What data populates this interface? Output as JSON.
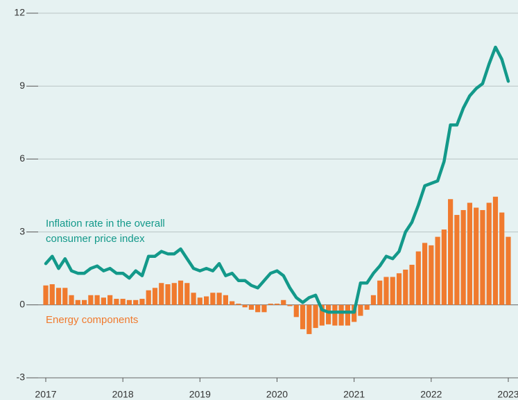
{
  "chart_data": {
    "type": "bar-line",
    "categories": [
      "2017",
      null,
      null,
      null,
      null,
      null,
      null,
      null,
      null,
      null,
      null,
      null,
      "2018",
      null,
      null,
      null,
      null,
      null,
      null,
      null,
      null,
      null,
      null,
      null,
      "2019",
      null,
      null,
      null,
      null,
      null,
      null,
      null,
      null,
      null,
      null,
      null,
      "2020",
      null,
      null,
      null,
      null,
      null,
      null,
      null,
      null,
      null,
      null,
      null,
      "2021",
      null,
      null,
      null,
      null,
      null,
      null,
      null,
      null,
      null,
      null,
      null,
      "2022",
      null,
      null,
      null,
      null,
      null,
      null,
      null,
      null,
      null,
      null,
      null,
      "2023"
    ],
    "series": [
      {
        "name": "Energy components",
        "type": "bar",
        "color": "#f07a2e",
        "values": [
          0.8,
          0.85,
          0.7,
          0.7,
          0.4,
          0.2,
          0.2,
          0.4,
          0.4,
          0.3,
          0.4,
          0.25,
          0.25,
          0.2,
          0.2,
          0.25,
          0.6,
          0.7,
          0.9,
          0.85,
          0.9,
          1.0,
          0.9,
          0.5,
          0.3,
          0.35,
          0.5,
          0.5,
          0.4,
          0.15,
          0.05,
          -0.1,
          -0.2,
          -0.3,
          -0.3,
          0.05,
          0.05,
          0.2,
          -0.05,
          -0.5,
          -1.0,
          -1.2,
          -0.95,
          -0.85,
          -0.8,
          -0.85,
          -0.85,
          -0.85,
          -0.7,
          -0.45,
          -0.2,
          0.4,
          1.0,
          1.15,
          1.15,
          1.3,
          1.45,
          1.65,
          2.2,
          2.55,
          2.45,
          2.8,
          3.1,
          4.35,
          3.7,
          3.9,
          4.2,
          4.0,
          3.9,
          4.2,
          4.45,
          3.8,
          2.8
        ]
      },
      {
        "name": "Inflation rate in the overall consumer price index",
        "type": "line",
        "color": "#13998a",
        "values": [
          1.7,
          2.0,
          1.5,
          1.9,
          1.4,
          1.3,
          1.3,
          1.5,
          1.6,
          1.4,
          1.5,
          1.3,
          1.3,
          1.1,
          1.4,
          1.2,
          2.0,
          2.0,
          2.2,
          2.1,
          2.1,
          2.3,
          1.9,
          1.5,
          1.4,
          1.5,
          1.4,
          1.7,
          1.2,
          1.3,
          1.0,
          1.0,
          0.8,
          0.7,
          1.0,
          1.3,
          1.4,
          1.2,
          0.7,
          0.3,
          0.1,
          0.3,
          0.4,
          -0.2,
          -0.3,
          -0.3,
          -0.3,
          -0.3,
          -0.3,
          0.9,
          0.9,
          1.3,
          1.6,
          2.0,
          1.9,
          2.2,
          3.0,
          3.4,
          4.1,
          4.9,
          5.0,
          5.1,
          5.9,
          7.4,
          7.4,
          8.1,
          8.6,
          8.9,
          9.1,
          9.9,
          10.6,
          10.1,
          9.2
        ]
      }
    ],
    "ylim": [
      -3,
      12
    ],
    "yticks": [
      -3,
      0,
      3,
      6,
      9,
      12
    ],
    "grid": true
  }
}
